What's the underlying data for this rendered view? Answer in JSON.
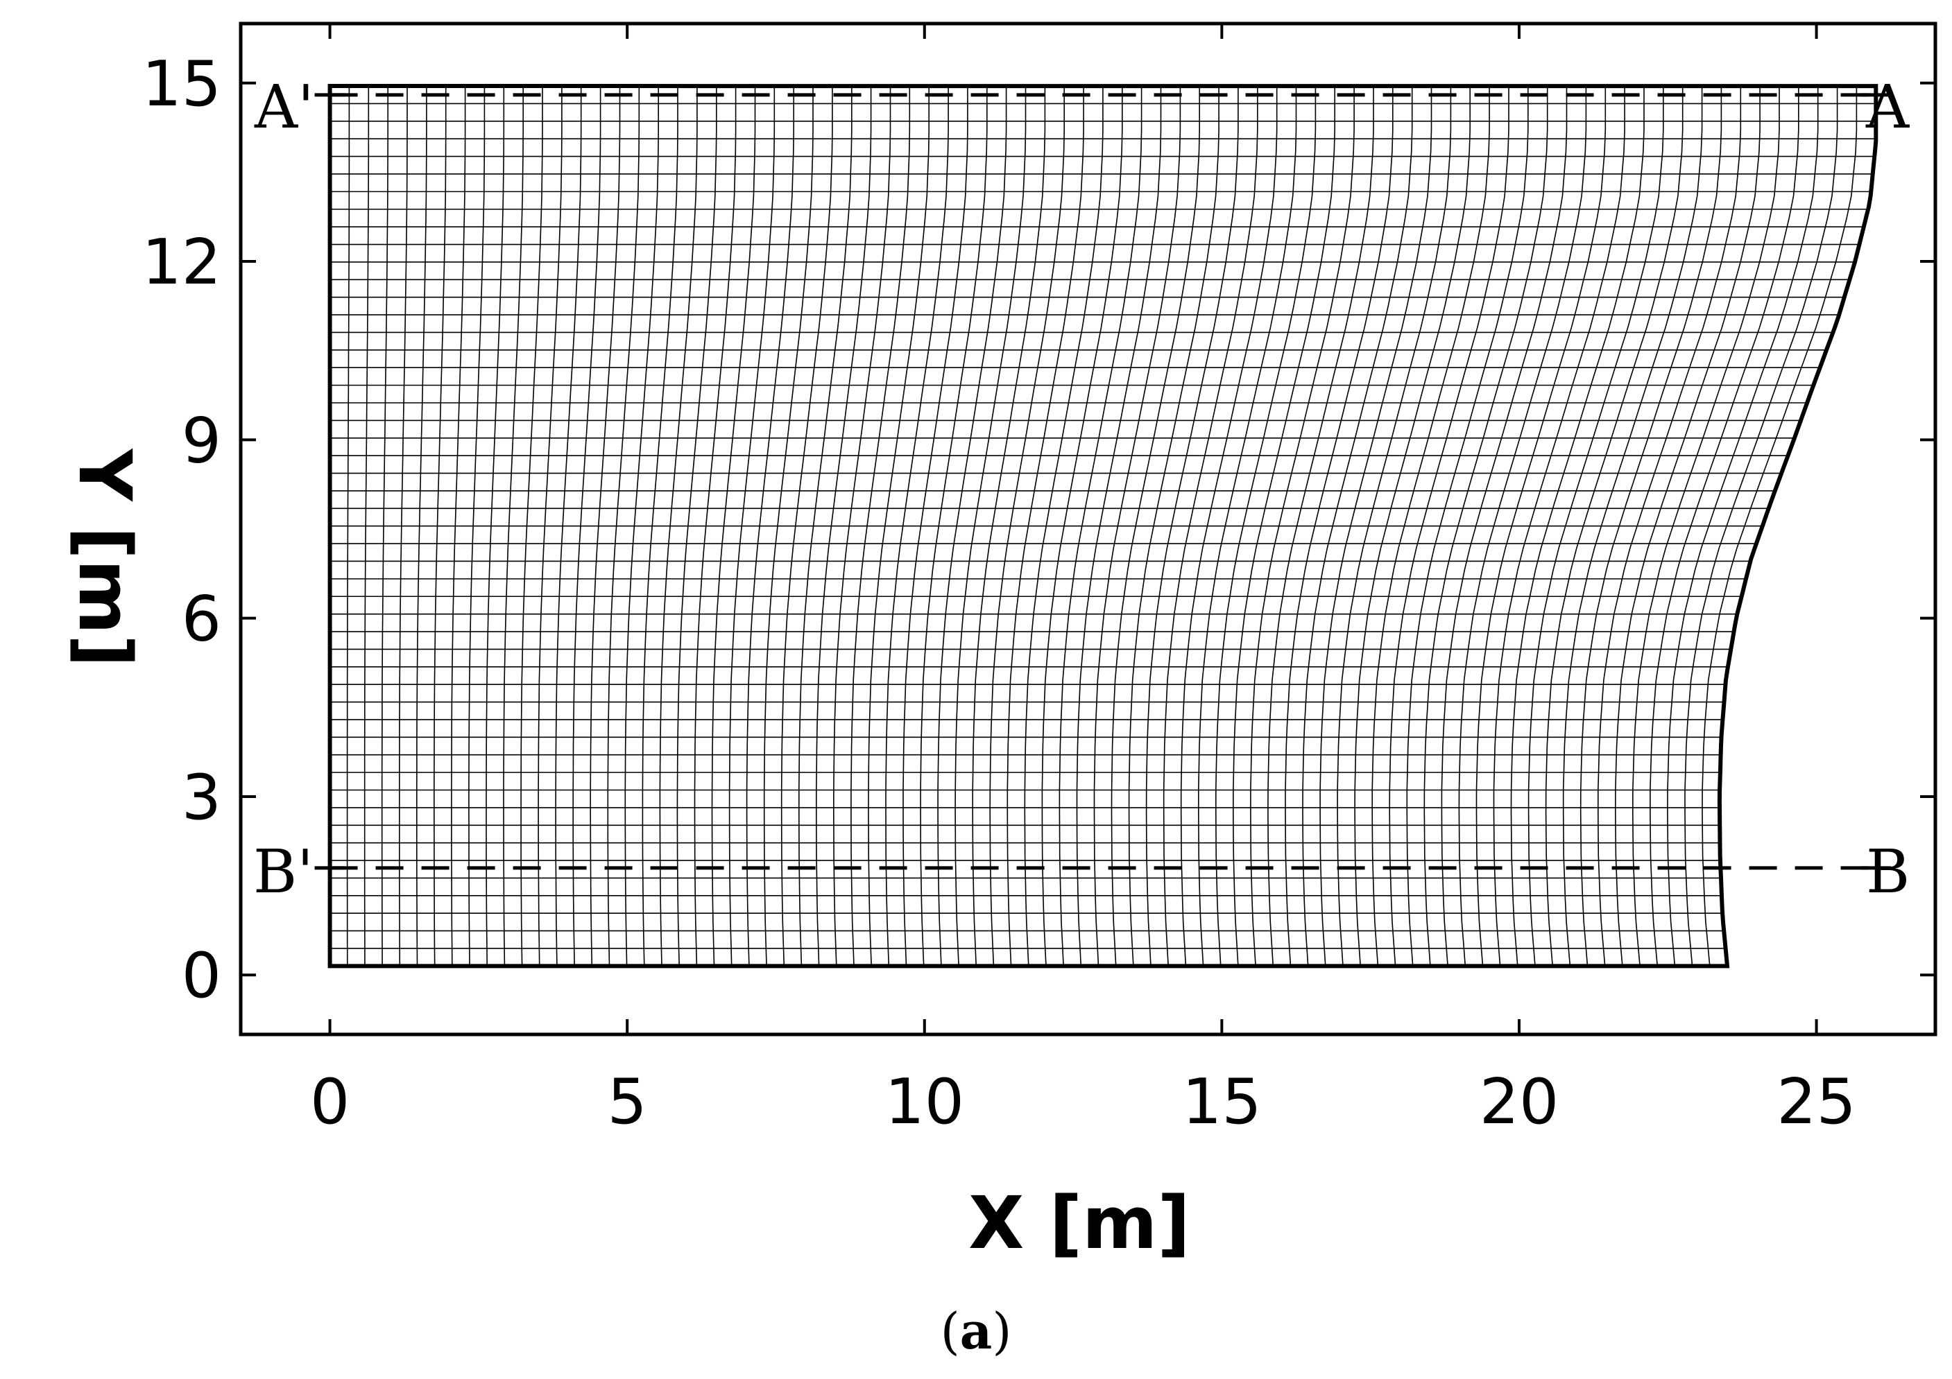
{
  "chart_data": {
    "type": "line",
    "title": "",
    "xlabel": "X [m]",
    "ylabel": "Y [m]",
    "xlim": [
      -1.5,
      27
    ],
    "ylim": [
      -1,
      16
    ],
    "xticks": [
      0,
      5,
      10,
      15,
      20,
      25
    ],
    "yticks": [
      0,
      3,
      6,
      9,
      12,
      15
    ],
    "grid": false,
    "mesh": {
      "columns": 81,
      "rows": 51,
      "left_boundary_x": 0,
      "bottom_y": 0.15,
      "top_y": 14.95,
      "right_boundary": {
        "y": [
          0.15,
          1.0,
          2.0,
          3.0,
          4.0,
          5.0,
          6.0,
          7.0,
          8.0,
          9.0,
          10.0,
          11.0,
          12.0,
          13.0,
          14.0,
          14.95
        ],
        "x": [
          23.5,
          23.42,
          23.38,
          23.37,
          23.4,
          23.48,
          23.65,
          23.9,
          24.25,
          24.62,
          24.98,
          25.35,
          25.65,
          25.9,
          26.0,
          26.0
        ]
      }
    },
    "series": [
      {
        "name": "A",
        "label_left": "A'",
        "label_right": "A",
        "style": "dashed",
        "x": [
          0,
          26
        ],
        "y": [
          14.8,
          14.8
        ]
      },
      {
        "name": "B",
        "label_left": "B'",
        "label_right": "B",
        "style": "dashed",
        "x": [
          0,
          26
        ],
        "y": [
          1.8,
          1.8
        ]
      }
    ],
    "panel_label": {
      "open": "(",
      "letter": "a",
      "close": ")"
    },
    "colors": {
      "ink": "#000000",
      "background": "#ffffff"
    }
  }
}
